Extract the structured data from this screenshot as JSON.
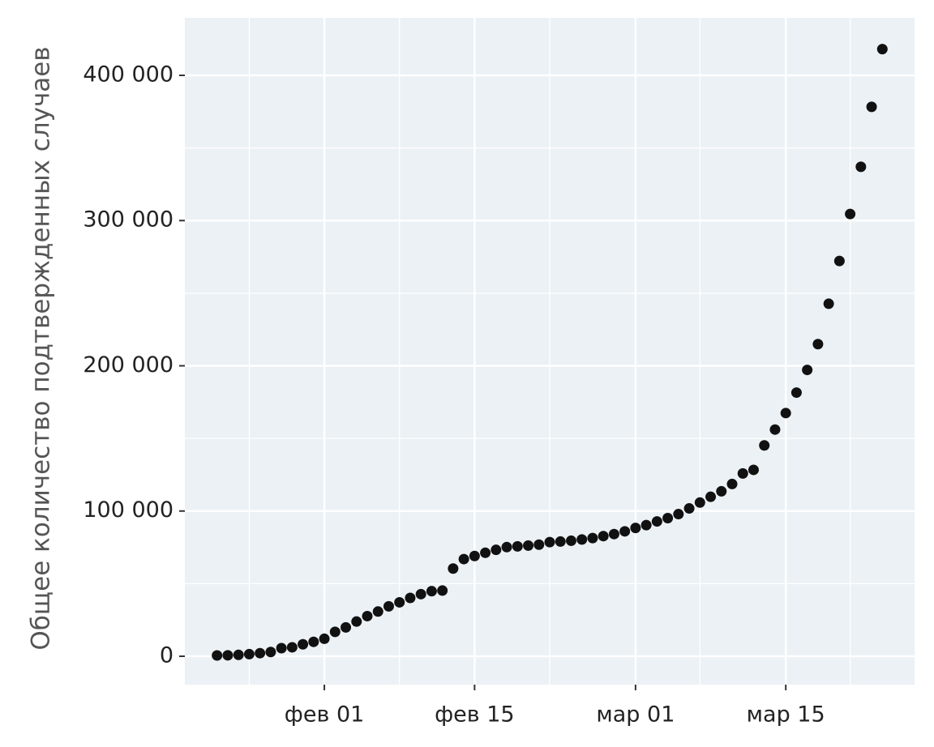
{
  "chart_data": {
    "type": "scatter",
    "y_label": "Общее количество подтвержденных случаев",
    "x": [
      "01-22",
      "01-23",
      "01-24",
      "01-25",
      "01-26",
      "01-27",
      "01-28",
      "01-29",
      "01-30",
      "01-31",
      "02-01",
      "02-02",
      "02-03",
      "02-04",
      "02-05",
      "02-06",
      "02-07",
      "02-08",
      "02-09",
      "02-10",
      "02-11",
      "02-12",
      "02-13",
      "02-14",
      "02-15",
      "02-16",
      "02-17",
      "02-18",
      "02-19",
      "02-20",
      "02-21",
      "02-22",
      "02-23",
      "02-24",
      "02-25",
      "02-26",
      "02-27",
      "02-28",
      "02-29",
      "03-01",
      "03-02",
      "03-03",
      "03-04",
      "03-05",
      "03-06",
      "03-07",
      "03-08",
      "03-09",
      "03-10",
      "03-11",
      "03-12",
      "03-13",
      "03-14",
      "03-15",
      "03-16",
      "03-17",
      "03-18",
      "03-19",
      "03-20",
      "03-21",
      "03-22",
      "03-23",
      "03-24"
    ],
    "values": [
      555,
      654,
      941,
      1434,
      2118,
      2927,
      5578,
      6166,
      8234,
      9927,
      12038,
      16787,
      19887,
      23898,
      27643,
      30802,
      34395,
      37129,
      40160,
      42769,
      44811,
      45229,
      60381,
      66907,
      69051,
      71235,
      73270,
      75152,
      75652,
      76212,
      76841,
      78602,
      78982,
      79546,
      80399,
      81376,
      82736,
      84120,
      86012,
      88369,
      90306,
      92840,
      95120,
      97882,
      101784,
      105821,
      109795,
      113561,
      118592,
      125865,
      128343,
      145193,
      156097,
      167449,
      181546,
      197168,
      214915,
      242713,
      272167,
      304528,
      337020,
      378287,
      418045
    ],
    "color": "#111111",
    "xlim": [
      "01-19",
      "03-27"
    ],
    "xticks": [
      {
        "value": "02-01",
        "label": "фев 01"
      },
      {
        "value": "02-15",
        "label": "фев 15"
      },
      {
        "value": "03-01",
        "label": "мар 01"
      },
      {
        "value": "03-15",
        "label": "мар 15"
      }
    ],
    "ylim": [
      -19526,
      439600
    ],
    "yticks": [
      0,
      {
        "value": 100000,
        "label": "100 000"
      },
      {
        "value": 200000,
        "label": "200 000"
      },
      {
        "value": 300000,
        "label": "300 000"
      },
      {
        "value": 400000,
        "label": "400 000"
      }
    ],
    "grid": true
  }
}
